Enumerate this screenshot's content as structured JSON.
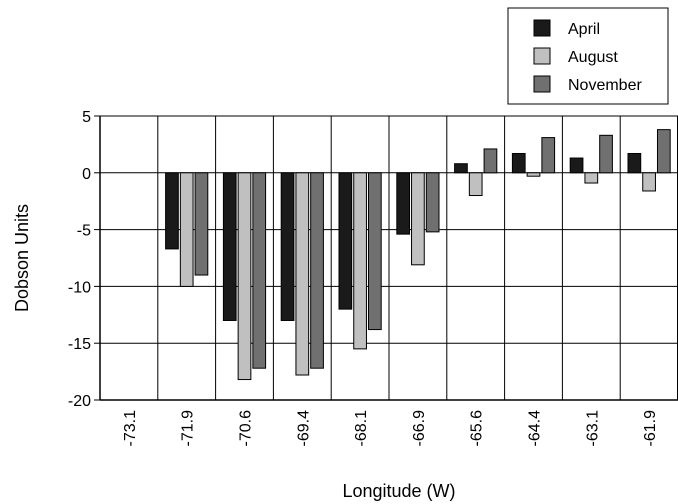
{
  "chart_data": {
    "type": "bar",
    "title": "",
    "xlabel": "Longitude (W)",
    "ylabel": "Dobson Units",
    "ylim": [
      -20,
      5
    ],
    "yticks": [
      5,
      0,
      -5,
      -10,
      -15,
      -20
    ],
    "grid": true,
    "legend_position": "top-right",
    "categories": [
      "-73.1",
      "-71.9",
      "-70.6",
      "-69.4",
      "-68.1",
      "-66.9",
      "-65.6",
      "-64.4",
      "-63.1",
      "-61.9"
    ],
    "series": [
      {
        "name": "April",
        "color": "#1a1a1a",
        "values": [
          null,
          -6.7,
          -13.0,
          -13.0,
          -12.0,
          -5.4,
          0.8,
          1.7,
          1.3,
          1.7
        ]
      },
      {
        "name": "August",
        "color": "#c0c0c0",
        "values": [
          null,
          -10.0,
          -18.2,
          -17.8,
          -15.5,
          -8.1,
          -2.0,
          -0.3,
          -0.9,
          -1.6
        ]
      },
      {
        "name": "November",
        "color": "#707070",
        "values": [
          null,
          -9.0,
          -17.2,
          -17.2,
          -13.8,
          -5.2,
          2.1,
          3.1,
          3.3,
          3.8
        ]
      }
    ]
  }
}
